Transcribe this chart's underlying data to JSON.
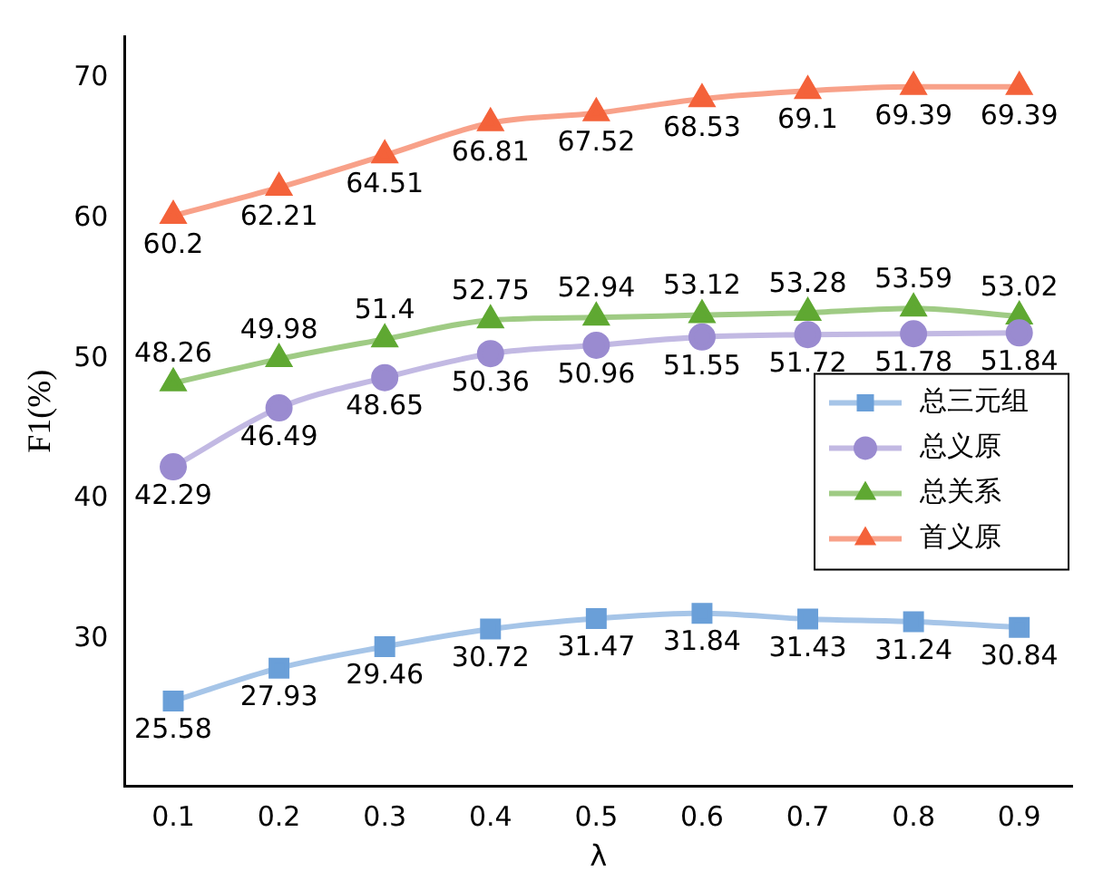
{
  "chart_data": {
    "type": "line",
    "xlabel": "λ",
    "ylabel": "F1(%)",
    "x": [
      0.1,
      0.2,
      0.3,
      0.4,
      0.5,
      0.6,
      0.7,
      0.8,
      0.9
    ],
    "xlim": [
      0.054,
      0.95
    ],
    "xticks": [
      0.1,
      0.2,
      0.3,
      0.4,
      0.5,
      0.6,
      0.7,
      0.8,
      0.9
    ],
    "ylim": [
      19.5,
      73
    ],
    "yticks": [
      30,
      40,
      50,
      60,
      70
    ],
    "series": [
      {
        "name": "总三元组",
        "color": "#6a9fd8",
        "marker": "square",
        "values": [
          25.58,
          27.93,
          29.46,
          30.72,
          31.47,
          31.84,
          31.43,
          31.24,
          30.84
        ]
      },
      {
        "name": "总义原",
        "color": "#9a8bd0",
        "marker": "circle",
        "values": [
          42.29,
          46.49,
          48.65,
          50.36,
          50.96,
          51.55,
          51.72,
          51.78,
          51.84
        ]
      },
      {
        "name": "总关系",
        "color": "#5fa832",
        "marker": "triangle",
        "values": [
          48.26,
          49.98,
          51.4,
          52.75,
          52.94,
          53.12,
          53.28,
          53.59,
          53.02
        ]
      },
      {
        "name": "首义原",
        "color": "#f4623a",
        "marker": "triangle",
        "values": [
          60.2,
          62.21,
          64.51,
          66.81,
          67.52,
          68.53,
          69.1,
          69.39,
          69.39
        ]
      }
    ],
    "data_labels": true,
    "legend": "right",
    "grid": false
  }
}
